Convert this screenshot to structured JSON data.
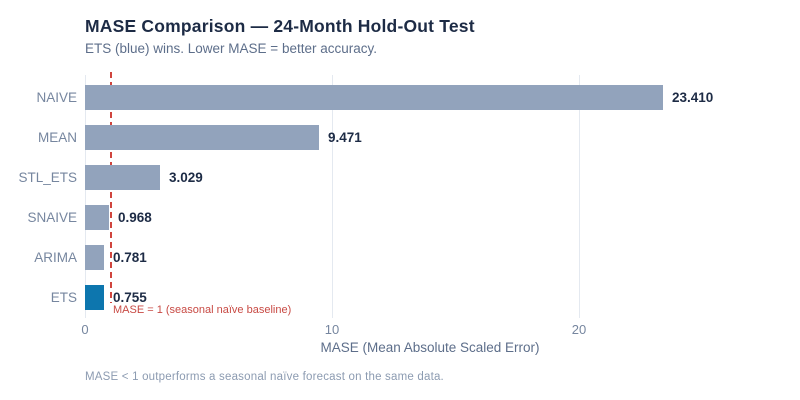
{
  "chart_data": {
    "type": "bar",
    "orientation": "horizontal",
    "title": "MASE Comparison — 24-Month Hold-Out Test",
    "subtitle": "ETS (blue) wins. Lower MASE = better accuracy.",
    "categories": [
      "NAIVE",
      "MEAN",
      "STL_ETS",
      "SNAIVE",
      "ARIMA",
      "ETS"
    ],
    "values": [
      23.41,
      9.471,
      3.029,
      0.968,
      0.781,
      0.755
    ],
    "value_labels": [
      "23.410",
      "9.471",
      "3.029",
      "0.968",
      "0.781",
      "0.755"
    ],
    "xlabel": "MASE (Mean Absolute Scaled Error)",
    "xticks": [
      0,
      10,
      20
    ],
    "xlim": [
      0,
      27.9
    ],
    "grid": "vertical",
    "legend": "none",
    "highlight_category": "ETS",
    "reference_line": {
      "x": 1,
      "label": "MASE = 1  (seasonal naïve baseline)",
      "color": "#d0453e"
    },
    "footnote": "MASE < 1 outperforms a seasonal naïve forecast on the same data.",
    "colors": {
      "bar_default": "#92a3bc",
      "bar_highlight": "#0d76ae",
      "title_text": "#1d2b45",
      "muted_text": "#5d6e8a",
      "label_text": "#76869f",
      "gridline": "#e4e9f0"
    }
  }
}
